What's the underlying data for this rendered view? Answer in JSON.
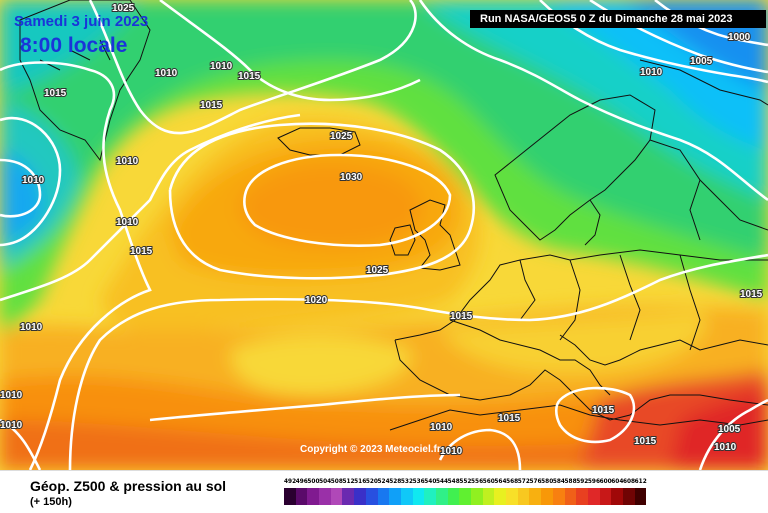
{
  "header": {
    "date": "Samedi 3 juin 2023",
    "time": "8:00 locale",
    "run": "Run NASA/GEOS5 0 Z du Dimanche 28 mai 2023"
  },
  "footer": {
    "title": "Géop. Z500 & pression au sol",
    "subtitle": "(+ 150h)",
    "copyright": "Copyright © 2023 Meteociel.fr"
  },
  "legend": {
    "values": [
      "492",
      "496",
      "500",
      "504",
      "508",
      "512",
      "516",
      "520",
      "524",
      "528",
      "532",
      "536",
      "540",
      "544",
      "548",
      "552",
      "556",
      "560",
      "564",
      "568",
      "572",
      "576",
      "580",
      "584",
      "588",
      "592",
      "596",
      "600",
      "604",
      "608",
      "612"
    ],
    "colors": [
      "#2a0030",
      "#5a0a6a",
      "#801a90",
      "#9a30a8",
      "#b048b8",
      "#6a2ab0",
      "#3a30c8",
      "#2850e0",
      "#1878f0",
      "#10a0f8",
      "#10c8f8",
      "#10e8f0",
      "#20f0c0",
      "#30f088",
      "#40f050",
      "#60f030",
      "#90f020",
      "#c0f020",
      "#e8f020",
      "#f8e028",
      "#f8c820",
      "#f8b010",
      "#f89808",
      "#f88010",
      "#f06018",
      "#e84020",
      "#e02828",
      "#c81818",
      "#a00808",
      "#700404",
      "#400000"
    ]
  },
  "isobars": [
    "1025",
    "1010",
    "1010",
    "1015",
    "1015",
    "1015",
    "1010",
    "1025",
    "1010",
    "1030",
    "1010",
    "1010",
    "1015",
    "1025",
    "1020",
    "1015",
    "1015",
    "1010",
    "1010",
    "1010",
    "1015",
    "1015",
    "1015",
    "1005",
    "1000",
    "1010",
    "1005",
    "1010",
    "1010"
  ],
  "colors": {
    "run_bg": "#000000",
    "date_text": "#1a35d8",
    "isobar": "#ffffff"
  }
}
